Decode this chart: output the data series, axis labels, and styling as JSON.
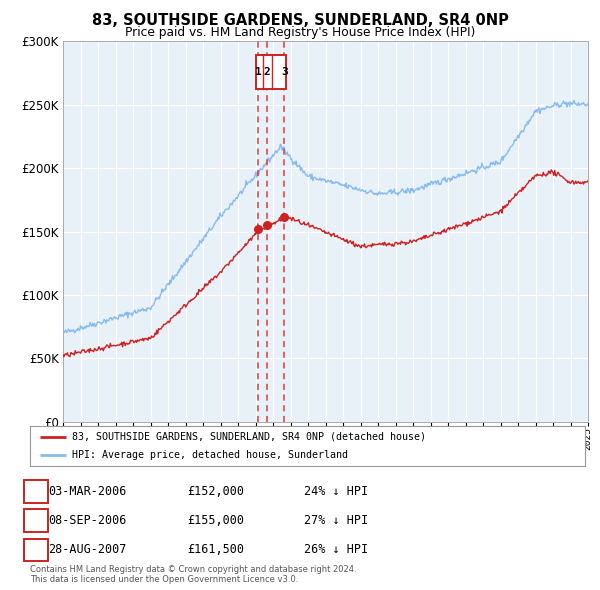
{
  "title": "83, SOUTHSIDE GARDENS, SUNDERLAND, SR4 0NP",
  "subtitle": "Price paid vs. HM Land Registry's House Price Index (HPI)",
  "background_color": "#ffffff",
  "plot_bg_color": "#e8f0f8",
  "grid_color": "#ffffff",
  "red_color": "#cc2222",
  "blue_color": "#88bbee",
  "red_line_label": "83, SOUTHSIDE GARDENS, SUNDERLAND, SR4 0NP (detached house)",
  "blue_line_label": "HPI: Average price, detached house, Sunderland",
  "sale_points": [
    {
      "date_num": 2006.17,
      "value": 152000,
      "label": "1"
    },
    {
      "date_num": 2006.67,
      "value": 155000,
      "label": "2"
    },
    {
      "date_num": 2007.65,
      "value": 161500,
      "label": "3"
    }
  ],
  "table_rows": [
    {
      "num": "1",
      "date": "03-MAR-2006",
      "price": "£152,000",
      "hpi": "24% ↓ HPI"
    },
    {
      "num": "2",
      "date": "08-SEP-2006",
      "price": "£155,000",
      "hpi": "27% ↓ HPI"
    },
    {
      "num": "3",
      "date": "28-AUG-2007",
      "price": "£161,500",
      "hpi": "26% ↓ HPI"
    }
  ],
  "copyright_text": "Contains HM Land Registry data © Crown copyright and database right 2024.\nThis data is licensed under the Open Government Licence v3.0.",
  "vline_dates": [
    2006.17,
    2006.67,
    2007.65
  ],
  "xmin": 1995,
  "xmax": 2025,
  "ymin": 0,
  "ymax": 300000,
  "yticks": [
    0,
    50000,
    100000,
    150000,
    200000,
    250000,
    300000
  ],
  "ytick_labels": [
    "£0",
    "£50K",
    "£100K",
    "£150K",
    "£200K",
    "£250K",
    "£300K"
  ]
}
